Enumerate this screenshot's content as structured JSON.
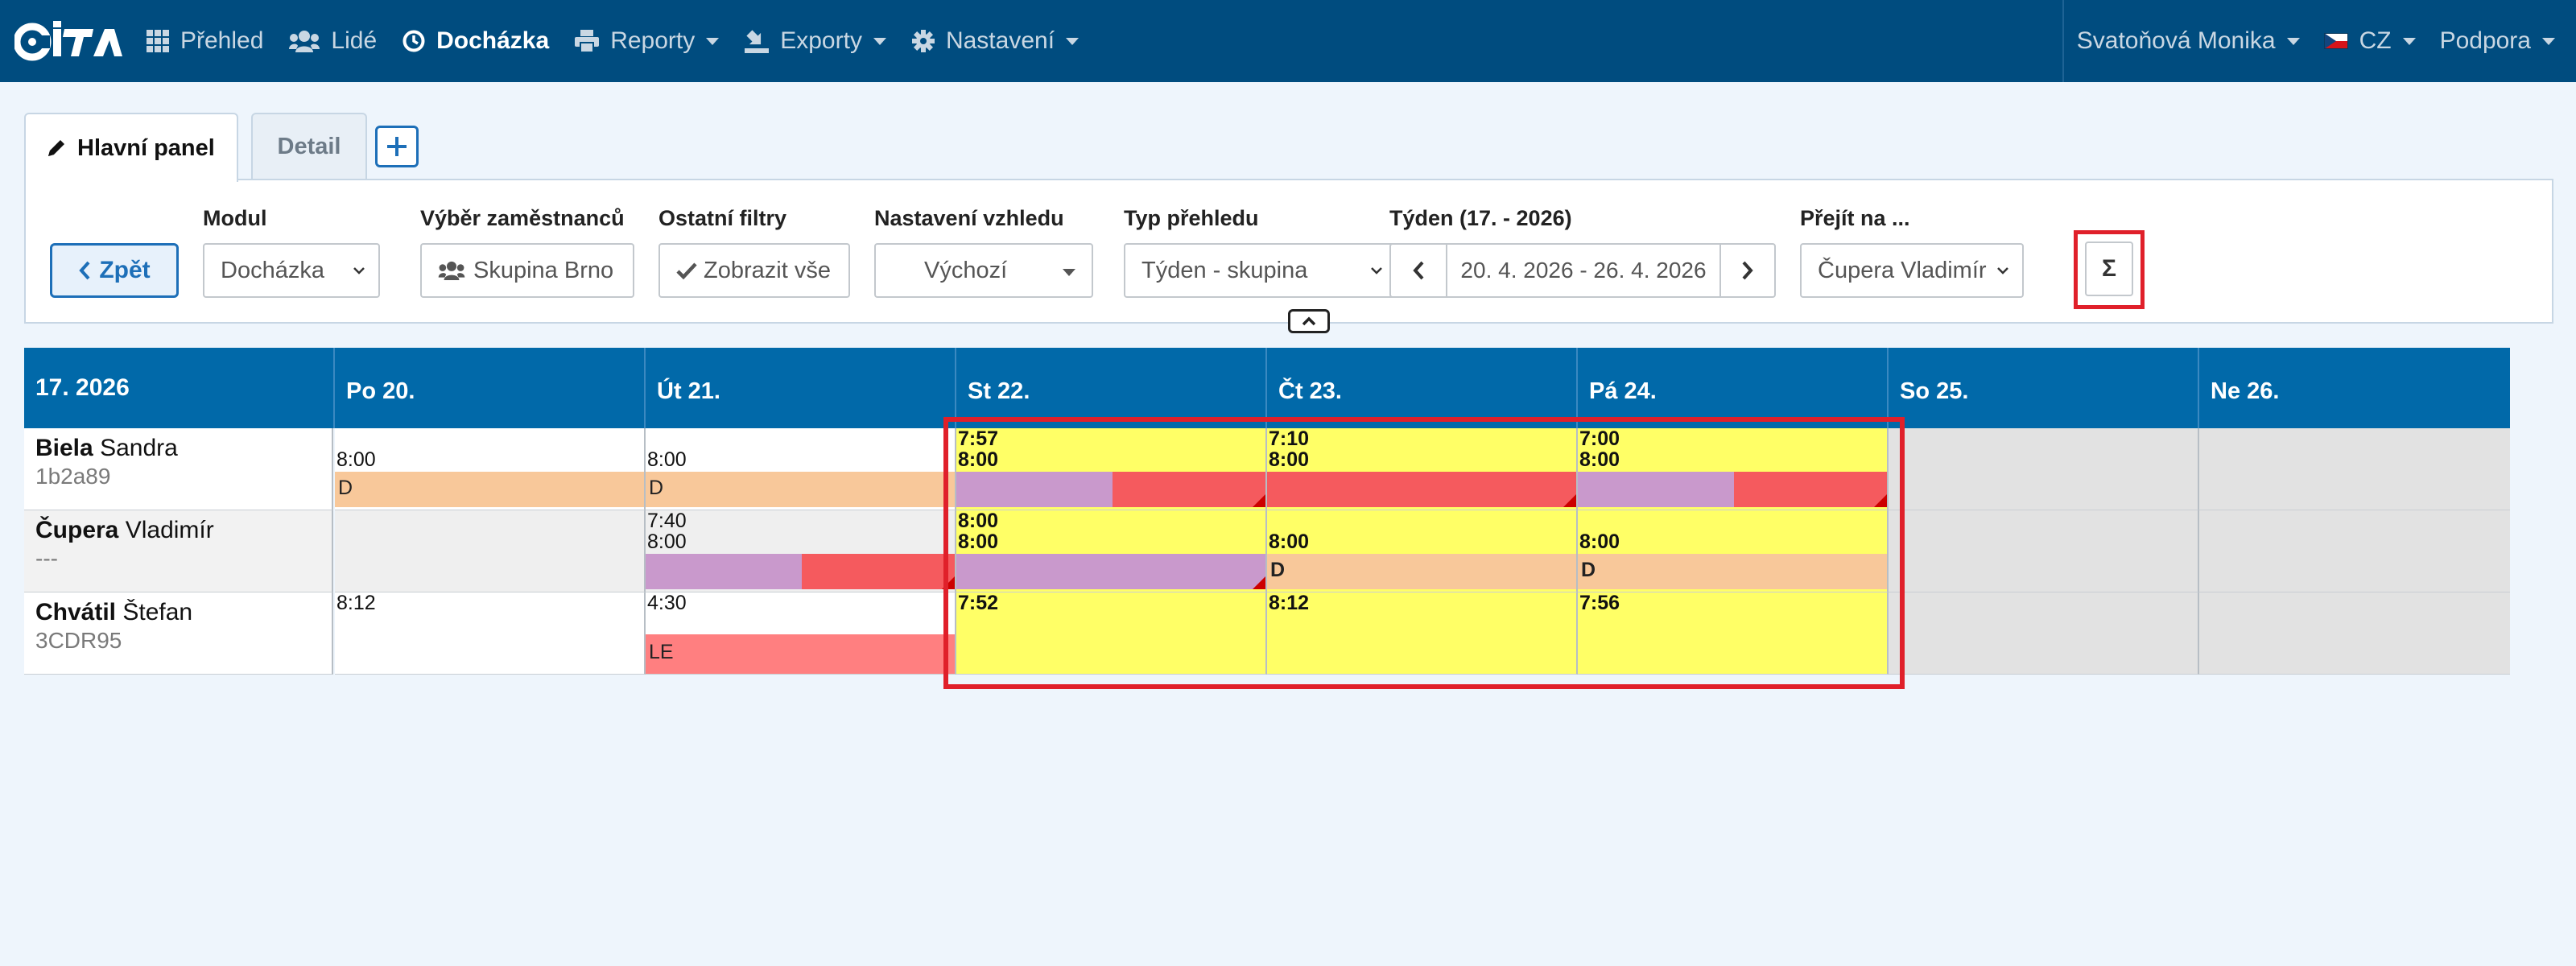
{
  "nav": {
    "items": [
      {
        "label": "Přehled",
        "icon": "grid-icon"
      },
      {
        "label": "Lidé",
        "icon": "users-icon"
      },
      {
        "label": "Docházka",
        "icon": "clock-icon",
        "active": true
      },
      {
        "label": "Reporty",
        "icon": "print-icon"
      },
      {
        "label": "Exporty",
        "icon": "export-icon"
      },
      {
        "label": "Nastavení",
        "icon": "gear-icon"
      }
    ],
    "user": "Svatoňová Monika",
    "language": "CZ",
    "support": "Podpora"
  },
  "tabs": {
    "main": "Hlavní panel",
    "detail": "Detail"
  },
  "filters": {
    "back": "Zpět",
    "modul_label": "Modul",
    "modul_value": "Docházka",
    "employees_label": "Výběr zaměstnanců",
    "employees_value": "Skupina Brno",
    "other_label": "Ostatní filtry",
    "other_value": "Zobrazit vše",
    "appearance_label": "Nastavení vzhledu",
    "appearance_value": "Výchozí",
    "type_label": "Typ přehledu",
    "type_value": "Týden - skupina",
    "week_label": "Týden (17. - 2026)",
    "week_value": "20. 4. 2026 - 26. 4. 2026",
    "goto_label": "Přejít na ...",
    "goto_value": "Čupera Vladimír",
    "sum": "Σ"
  },
  "grid": {
    "week": "17. 2026",
    "days": [
      "Po 20.",
      "Út 21.",
      "St 22.",
      "Čt 23.",
      "Pá 24.",
      "So 25.",
      "Ne 26."
    ],
    "employees": [
      {
        "last": "Biela",
        "first": "Sandra",
        "code": "1b2a89"
      },
      {
        "last": "Čupera",
        "first": "Vladimír",
        "code": "---"
      },
      {
        "last": "Chvátil",
        "first": "Štefan",
        "code": "3CDR95"
      }
    ],
    "cells": {
      "r0": {
        "d0": {
          "t1": "8:00",
          "bar": "D"
        },
        "d1": {
          "t1": "8:00",
          "bar": "D"
        },
        "d2": {
          "t1": "7:57",
          "t2": "8:00"
        },
        "d3": {
          "t1": "7:10",
          "t2": "8:00"
        },
        "d4": {
          "t1": "7:00",
          "t2": "8:00"
        }
      },
      "r1": {
        "d1": {
          "t1": "7:40",
          "t2": "8:00"
        },
        "d2": {
          "t1": "8:00",
          "t2": "8:00"
        },
        "d3": {
          "t1": "8:00",
          "bar": "D"
        },
        "d4": {
          "t1": "8:00",
          "bar": "D"
        }
      },
      "r2": {
        "d0": {
          "t1": "8:12"
        },
        "d1": {
          "t1": "4:30",
          "bar": "LE"
        },
        "d2": {
          "t1": "7:52"
        },
        "d3": {
          "t1": "8:12"
        },
        "d4": {
          "t1": "7:56"
        }
      }
    }
  },
  "colors": {
    "navbar": "#004c7f",
    "header": "#0169a9",
    "work_yellow": "#ffff66",
    "absence_orange": "#f8c89a",
    "purple": "#c999cc",
    "red": "#f55a5e",
    "pink": "#ff7f80",
    "weekend_gray": "#e2e2e2",
    "highlight": "#e0202a"
  }
}
